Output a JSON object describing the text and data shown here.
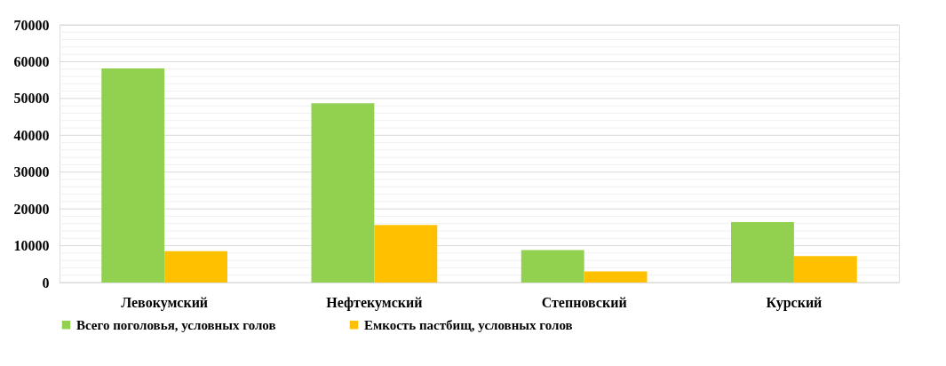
{
  "chart_data": {
    "type": "bar",
    "categories": [
      "Левокумский",
      "Нефтекумский",
      "Степновский",
      "Курский"
    ],
    "series": [
      {
        "name": "Всего поголовья, условных голов",
        "color": "#92d050",
        "values": [
          58200,
          48700,
          8800,
          16400
        ]
      },
      {
        "name": "Емкость пастбищ, условных голов",
        "color": "#ffc000",
        "values": [
          8500,
          15600,
          3000,
          7200
        ]
      }
    ],
    "ylim": [
      0,
      70000
    ],
    "yticks": [
      0,
      {
        "value": 2000,
        "label": null
      },
      {
        "value": 4000,
        "label": null
      },
      {
        "value": 6000,
        "label": null
      },
      {
        "value": 8000,
        "label": null
      },
      10000,
      {
        "value": 12000,
        "label": null
      },
      {
        "value": 14000,
        "label": null
      },
      {
        "value": 16000,
        "label": null
      },
      {
        "value": 18000,
        "label": null
      },
      20000,
      {
        "value": 22000,
        "label": null
      },
      {
        "value": 24000,
        "label": null
      },
      {
        "value": 26000,
        "label": null
      },
      {
        "value": 28000,
        "label": null
      },
      30000,
      {
        "value": 32000,
        "label": null
      },
      {
        "value": 34000,
        "label": null
      },
      {
        "value": 36000,
        "label": null
      },
      {
        "value": 38000,
        "label": null
      },
      40000,
      {
        "value": 42000,
        "label": null
      },
      {
        "value": 44000,
        "label": null
      },
      {
        "value": 46000,
        "label": null
      },
      {
        "value": 48000,
        "label": null
      },
      50000,
      {
        "value": 52000,
        "label": null
      },
      {
        "value": 54000,
        "label": null
      },
      {
        "value": 56000,
        "label": null
      },
      {
        "value": 58000,
        "label": null
      },
      60000,
      {
        "value": 62000,
        "label": null
      },
      {
        "value": 64000,
        "label": null
      },
      {
        "value": 66000,
        "label": null
      },
      {
        "value": 68000,
        "label": null
      },
      70000
    ],
    "grid": "y",
    "legend": "bottom"
  }
}
